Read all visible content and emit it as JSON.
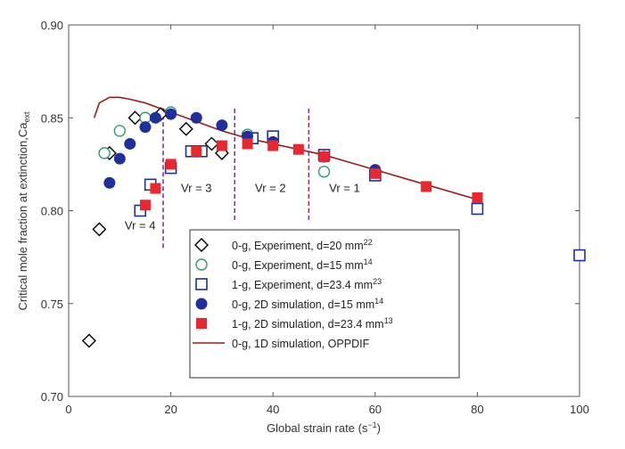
{
  "chart_data": {
    "type": "scatter",
    "xlabel": {
      "text": "Global strain rate (s",
      "sup": "−1",
      "tail": ")"
    },
    "ylabel": {
      "text": "Critical mole fraction at extinction,Ca",
      "sub": "ext"
    },
    "xlim": [
      0,
      100
    ],
    "ylim": [
      0.7,
      0.9
    ],
    "xticks": [
      "0",
      "20",
      "40",
      "60",
      "80",
      "100"
    ],
    "yticks": [
      "0.70",
      "0.75",
      "0.80",
      "0.85",
      "0.90"
    ],
    "grid": false,
    "legend_position": "bottom-center",
    "region_lines": [
      {
        "x": 18.5,
        "y_range": [
          0.78,
          0.856
        ]
      },
      {
        "x": 32.5,
        "y_range": [
          0.795,
          0.856
        ]
      },
      {
        "x": 47,
        "y_range": [
          0.795,
          0.856
        ]
      }
    ],
    "region_labels": [
      {
        "label": "Vr = 4",
        "x": 14,
        "y": 0.79
      },
      {
        "label": "Vr = 3",
        "x": 25,
        "y": 0.81
      },
      {
        "label": "Vr = 2",
        "x": 39.5,
        "y": 0.81
      },
      {
        "label": "Vr = 1",
        "x": 54,
        "y": 0.81
      }
    ],
    "series": [
      {
        "name": "0-g, Experiment, d=20 mm",
        "ref": "22",
        "marker": "diamond-open",
        "color": "#000000",
        "x": [
          4,
          6,
          8,
          13,
          18,
          23,
          28,
          30
        ],
        "y": [
          0.73,
          0.79,
          0.831,
          0.85,
          0.852,
          0.844,
          0.836,
          0.831
        ]
      },
      {
        "name": "0-g, Experiment, d=15 mm",
        "ref": "14",
        "marker": "circle-open",
        "color": "#2e9c6a",
        "x": [
          7,
          10,
          15,
          20,
          35,
          50
        ],
        "y": [
          0.831,
          0.843,
          0.85,
          0.853,
          0.841,
          0.821
        ]
      },
      {
        "name": "1-g, Experiment, d=23.4 mm",
        "ref": "23",
        "marker": "square-open",
        "color": "#1f2f9c",
        "x": [
          14,
          16,
          20,
          24,
          26,
          36,
          40,
          50,
          60,
          80,
          100
        ],
        "y": [
          0.8,
          0.814,
          0.823,
          0.832,
          0.832,
          0.839,
          0.84,
          0.83,
          0.819,
          0.801,
          0.776
        ]
      },
      {
        "name": "0-g, 2D simulation, d=15 mm",
        "ref": "14",
        "marker": "circle-filled",
        "color": "#1f2f9c",
        "x": [
          8,
          10,
          12,
          15,
          17,
          20,
          25,
          30,
          35,
          40,
          50,
          60
        ],
        "y": [
          0.815,
          0.828,
          0.836,
          0.845,
          0.85,
          0.852,
          0.85,
          0.846,
          0.84,
          0.837,
          0.829,
          0.822
        ]
      },
      {
        "name": "1-g, 2D simulation, d=23.4 mm",
        "ref": "13",
        "marker": "square-filled",
        "color": "#e8282e",
        "x": [
          15,
          17,
          20,
          25,
          30,
          35,
          40,
          45,
          50,
          60,
          70,
          80
        ],
        "y": [
          0.803,
          0.812,
          0.825,
          0.832,
          0.835,
          0.836,
          0.835,
          0.833,
          0.829,
          0.82,
          0.813,
          0.807
        ]
      },
      {
        "name": "0-g, 1D simulation, OPPDIF",
        "ref": "",
        "marker": "line",
        "color": "#9c1c1c",
        "x": [
          5,
          6,
          8,
          10,
          12,
          15,
          18,
          20,
          25,
          30,
          35,
          40,
          50,
          60,
          70,
          80
        ],
        "y": [
          0.85,
          0.858,
          0.861,
          0.861,
          0.86,
          0.858,
          0.855,
          0.853,
          0.848,
          0.843,
          0.839,
          0.836,
          0.83,
          0.822,
          0.814,
          0.806
        ]
      }
    ]
  }
}
